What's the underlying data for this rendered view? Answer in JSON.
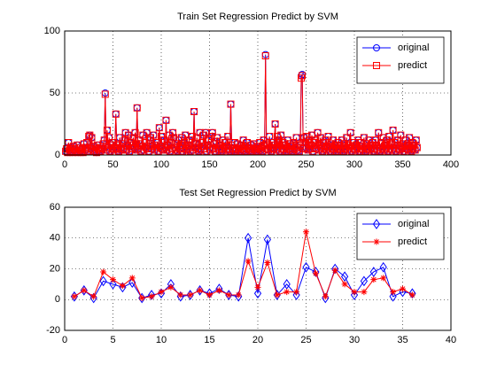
{
  "chart_data": [
    {
      "type": "line",
      "title": "Train Set Regression Predict by SVM",
      "x": [
        1,
        2,
        3,
        4,
        5,
        6,
        7,
        8,
        9,
        10,
        11,
        12,
        13,
        14,
        15,
        16,
        17,
        18,
        19,
        20,
        21,
        22,
        23,
        24,
        25,
        26,
        27,
        28,
        29,
        30,
        31,
        32,
        33,
        34,
        35,
        36,
        37,
        38,
        39,
        40,
        41,
        42,
        43,
        44,
        45,
        46,
        47,
        48,
        49,
        50,
        51,
        52,
        53,
        54,
        55,
        56,
        57,
        58,
        59,
        60,
        61,
        62,
        63,
        64,
        65,
        66,
        67,
        68,
        69,
        70,
        71,
        72,
        73,
        74,
        75,
        76,
        77,
        78,
        79,
        80,
        81,
        82,
        83,
        84,
        85,
        86,
        87,
        88,
        89,
        90,
        91,
        92,
        93,
        94,
        95,
        96,
        97,
        98,
        99,
        100,
        101,
        102,
        103,
        104,
        105,
        106,
        107,
        108,
        109,
        110,
        111,
        112,
        113,
        114,
        115,
        116,
        117,
        118,
        119,
        120,
        121,
        122,
        123,
        124,
        125,
        126,
        127,
        128,
        129,
        130,
        131,
        132,
        133,
        134,
        135,
        136,
        137,
        138,
        139,
        140,
        141,
        142,
        143,
        144,
        145,
        146,
        147,
        148,
        149,
        150,
        151,
        152,
        153,
        154,
        155,
        156,
        157,
        158,
        159,
        160,
        161,
        162,
        163,
        164,
        165,
        166,
        167,
        168,
        169,
        170,
        171,
        172,
        173,
        174,
        175,
        176,
        177,
        178,
        179,
        180,
        181,
        182,
        183,
        184,
        185,
        186,
        187,
        188,
        189,
        190,
        191,
        192,
        193,
        194,
        195,
        196,
        197,
        198,
        199,
        200,
        201,
        202,
        203,
        204,
        205,
        206,
        207,
        208,
        209,
        210,
        211,
        212,
        213,
        214,
        215,
        216,
        217,
        218,
        219,
        220,
        221,
        222,
        223,
        224,
        225,
        226,
        227,
        228,
        229,
        230,
        231,
        232,
        233,
        234,
        235,
        236,
        237,
        238,
        239,
        240,
        241,
        242,
        243,
        244,
        245,
        246,
        247,
        248,
        249,
        250,
        251,
        252,
        253,
        254,
        255,
        256,
        257,
        258,
        259,
        260,
        261,
        262,
        263,
        264,
        265,
        266,
        267,
        268,
        269,
        270,
        271,
        272,
        273,
        274,
        275,
        276,
        277,
        278,
        279,
        280,
        281,
        282,
        283,
        284,
        285,
        286,
        287,
        288,
        289,
        290,
        291,
        292,
        293,
        294,
        295,
        296,
        297,
        298,
        299,
        300,
        301,
        302,
        303,
        304,
        305,
        306,
        307,
        308,
        309,
        310,
        311,
        312,
        313,
        314,
        315,
        316,
        317,
        318,
        319,
        320,
        321,
        322,
        323,
        324,
        325,
        326,
        327,
        328,
        329,
        330,
        331,
        332,
        333,
        334,
        335,
        336,
        337,
        338,
        339,
        340,
        341,
        342,
        343,
        344,
        345,
        346,
        347,
        348,
        349,
        350,
        351,
        352,
        353,
        354,
        355,
        356,
        357,
        358,
        359,
        360,
        361,
        362,
        363,
        364,
        365
      ],
      "series": [
        {
          "name": "original",
          "color": "#0000ff",
          "marker": "o",
          "values": [
            3,
            5,
            2,
            10,
            4,
            6,
            3,
            2,
            7,
            5,
            4,
            3,
            8,
            2,
            6,
            4,
            3,
            5,
            2,
            9,
            4,
            6,
            10,
            3,
            15,
            16,
            5,
            14,
            4,
            7,
            3,
            6,
            2,
            8,
            5,
            4,
            3,
            6,
            5,
            9,
            12,
            50,
            4,
            20,
            6,
            14,
            3,
            8,
            5,
            10,
            4,
            6,
            33,
            5,
            8,
            3,
            14,
            6,
            4,
            9,
            5,
            12,
            18,
            4,
            7,
            16,
            3,
            10,
            5,
            8,
            14,
            6,
            18,
            4,
            38,
            5,
            12,
            9,
            3,
            7,
            16,
            4,
            10,
            6,
            18,
            5,
            3,
            12,
            14,
            5,
            7,
            16,
            4,
            8,
            6,
            10,
            3,
            22,
            7,
            15,
            5,
            4,
            12,
            6,
            28,
            4,
            8,
            16,
            3,
            10,
            5,
            18,
            14,
            6,
            4,
            9,
            3,
            12,
            5,
            8,
            14,
            3,
            6,
            10,
            16,
            4,
            5,
            8,
            12,
            3,
            6,
            15,
            4,
            35,
            6,
            9,
            14,
            5,
            3,
            18,
            4,
            10,
            7,
            16,
            5,
            18,
            3,
            8,
            12,
            6,
            4,
            15,
            18,
            5,
            9,
            3,
            11,
            14,
            6,
            4,
            8,
            5,
            3,
            12,
            6,
            10,
            4,
            7,
            15,
            5,
            3,
            41,
            8,
            4,
            6,
            10,
            3,
            5,
            9,
            4,
            6,
            3,
            8,
            5,
            12,
            4,
            7,
            3,
            10,
            6,
            5,
            4,
            8,
            3,
            6,
            9,
            4,
            5,
            3,
            7,
            5,
            10,
            4,
            6,
            3,
            12,
            8,
            81,
            5,
            9,
            4,
            15,
            6,
            3,
            10,
            5,
            8,
            25,
            4,
            15,
            6,
            12,
            3,
            16,
            5,
            10,
            4,
            8,
            6,
            3,
            12,
            5,
            9,
            4,
            7,
            3,
            10,
            5,
            8,
            14,
            4,
            6,
            3,
            8,
            64,
            65,
            5,
            14,
            10,
            6,
            15,
            4,
            12,
            5,
            8,
            16,
            3,
            10,
            6,
            12,
            5,
            18,
            4,
            8,
            14,
            6,
            3,
            10,
            5,
            12,
            4,
            7,
            15,
            6,
            3,
            9,
            5,
            12,
            4,
            8,
            6,
            3,
            10,
            5,
            8,
            4,
            12,
            6,
            3,
            9,
            5,
            14,
            4,
            8,
            6,
            18,
            3,
            7,
            10,
            5,
            4,
            8,
            6,
            12,
            3,
            10,
            5,
            7,
            4,
            14,
            6,
            3,
            9,
            5,
            12,
            4,
            8,
            6,
            10,
            3,
            5,
            12,
            8,
            4,
            18,
            6,
            3,
            10,
            5,
            14,
            4,
            8,
            6,
            12,
            3,
            15,
            5,
            9,
            4,
            20,
            6,
            10,
            3,
            8,
            12,
            5,
            4,
            16,
            6,
            9,
            3,
            7,
            12,
            5,
            8,
            4,
            14,
            6,
            3,
            10,
            5,
            8,
            4,
            12,
            6
          ]
        },
        {
          "name": "predict",
          "color": "#ff0000",
          "marker": "s",
          "values": [
            3,
            5,
            2,
            10,
            4,
            6,
            3,
            2,
            7,
            5,
            4,
            3,
            8,
            2,
            6,
            4,
            3,
            5,
            2,
            9,
            4,
            6,
            10,
            3,
            15,
            16,
            5,
            14,
            4,
            7,
            3,
            6,
            2,
            8,
            5,
            4,
            3,
            6,
            5,
            9,
            12,
            49,
            4,
            20,
            6,
            14,
            3,
            8,
            5,
            10,
            4,
            6,
            33,
            5,
            8,
            3,
            14,
            6,
            4,
            9,
            5,
            12,
            18,
            4,
            7,
            16,
            3,
            10,
            5,
            8,
            14,
            6,
            18,
            4,
            38,
            5,
            12,
            9,
            3,
            7,
            16,
            4,
            10,
            6,
            18,
            5,
            3,
            12,
            14,
            5,
            7,
            16,
            4,
            8,
            6,
            10,
            3,
            22,
            7,
            15,
            5,
            4,
            12,
            6,
            28,
            4,
            8,
            16,
            3,
            10,
            5,
            18,
            14,
            6,
            4,
            9,
            3,
            12,
            5,
            8,
            14,
            3,
            6,
            10,
            16,
            4,
            5,
            8,
            12,
            3,
            6,
            15,
            4,
            35,
            6,
            9,
            14,
            5,
            3,
            18,
            4,
            10,
            7,
            16,
            5,
            18,
            3,
            8,
            12,
            6,
            4,
            15,
            18,
            5,
            9,
            3,
            11,
            14,
            6,
            4,
            8,
            5,
            3,
            12,
            6,
            10,
            4,
            7,
            15,
            5,
            3,
            41,
            8,
            4,
            6,
            10,
            3,
            5,
            9,
            4,
            6,
            3,
            8,
            5,
            12,
            4,
            7,
            3,
            10,
            6,
            5,
            4,
            8,
            3,
            6,
            9,
            4,
            5,
            3,
            7,
            5,
            10,
            4,
            6,
            3,
            12,
            8,
            80,
            5,
            9,
            4,
            15,
            6,
            3,
            10,
            5,
            8,
            25,
            4,
            15,
            6,
            12,
            3,
            16,
            5,
            10,
            4,
            8,
            6,
            3,
            12,
            5,
            9,
            4,
            7,
            3,
            10,
            5,
            8,
            14,
            4,
            6,
            3,
            8,
            62,
            64,
            5,
            14,
            10,
            6,
            15,
            4,
            12,
            5,
            8,
            16,
            3,
            10,
            6,
            12,
            5,
            18,
            4,
            8,
            14,
            6,
            3,
            10,
            5,
            12,
            4,
            7,
            15,
            6,
            3,
            9,
            5,
            12,
            4,
            8,
            6,
            3,
            10,
            5,
            8,
            4,
            12,
            6,
            3,
            9,
            5,
            14,
            4,
            8,
            6,
            18,
            3,
            7,
            10,
            5,
            4,
            8,
            6,
            12,
            3,
            10,
            5,
            7,
            4,
            14,
            6,
            3,
            9,
            5,
            12,
            4,
            8,
            6,
            10,
            3,
            5,
            12,
            8,
            4,
            18,
            6,
            3,
            10,
            5,
            14,
            4,
            8,
            6,
            12,
            3,
            15,
            5,
            9,
            4,
            20,
            6,
            10,
            3,
            8,
            12,
            5,
            4,
            16,
            6,
            9,
            3,
            7,
            12,
            5,
            8,
            4,
            14,
            6,
            3,
            10,
            5,
            8,
            4,
            12,
            6
          ]
        }
      ],
      "xlim": [
        0,
        400
      ],
      "xticks": [
        0,
        50,
        100,
        150,
        200,
        250,
        300,
        350,
        400
      ],
      "ylim": [
        0,
        100
      ],
      "yticks": [
        0,
        50,
        100
      ],
      "grid": true,
      "legend": "northeast"
    },
    {
      "type": "line",
      "title": "Test Set Regression Predict by SVM",
      "x": [
        1,
        2,
        3,
        4,
        5,
        6,
        7,
        8,
        9,
        10,
        11,
        12,
        13,
        14,
        15,
        16,
        17,
        18,
        19,
        20,
        21,
        22,
        23,
        24,
        25,
        26,
        27,
        28,
        29,
        30,
        31,
        32,
        33,
        34,
        35,
        36
      ],
      "series": [
        {
          "name": "original",
          "color": "#0000ff",
          "marker": "d",
          "values": [
            2,
            6,
            1,
            12,
            10,
            8,
            11,
            1,
            3,
            4,
            10,
            2,
            3,
            6,
            4,
            7,
            3,
            2,
            40,
            4,
            39,
            3,
            10,
            3,
            21,
            18,
            1,
            20,
            15,
            3,
            12,
            18,
            21,
            2,
            5,
            4
          ]
        },
        {
          "name": "predict",
          "color": "#ff0000",
          "marker": "*",
          "values": [
            2,
            6,
            2,
            18,
            13,
            9,
            14,
            1,
            2,
            5,
            8,
            3,
            3,
            6,
            3,
            6,
            3,
            3,
            25,
            8,
            24,
            3,
            5,
            5,
            44,
            17,
            2,
            19,
            10,
            5,
            5,
            13,
            14,
            5,
            7,
            3
          ]
        }
      ],
      "xlim": [
        0,
        40
      ],
      "xticks": [
        0,
        5,
        10,
        15,
        20,
        25,
        30,
        35,
        40
      ],
      "ylim": [
        -20,
        60
      ],
      "yticks": [
        -20,
        0,
        20,
        40,
        60
      ],
      "grid": true,
      "legend": "northeast"
    }
  ]
}
